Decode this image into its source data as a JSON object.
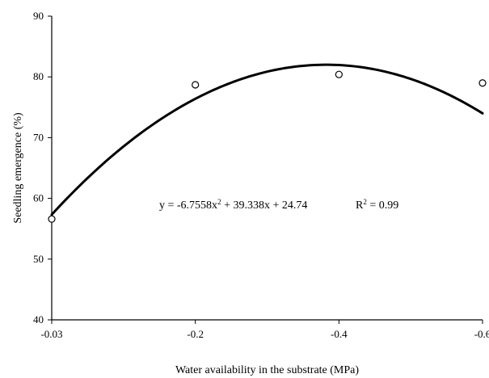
{
  "chart_data": {
    "type": "scatter",
    "xlabel": "Water availability in the substrate (MPa)",
    "ylabel": "Seedling emergence (%)",
    "x_categories": [
      "-0.03",
      "-0.2",
      "-0.4",
      "-0.6"
    ],
    "x": [
      -0.03,
      -0.2,
      -0.4,
      -0.6
    ],
    "series": [
      {
        "values": [
          56.6,
          78.7,
          80.4,
          79.0
        ]
      }
    ],
    "ylim": [
      40,
      90
    ],
    "yticks": [
      "40",
      "50",
      "60",
      "70",
      "80",
      "90"
    ],
    "fit": {
      "type": "quadratic",
      "equation": "y = -6.7558x² + 39.338x + 24.74",
      "r2_text": "R² = 0.99",
      "coefficients": [
        -6.7558,
        39.338,
        24.74
      ]
    },
    "grid": false,
    "legend": "none",
    "colors": {
      "line": "#000000",
      "marker_fill": "#ffffff",
      "marker_stroke": "#000000",
      "background": "#ffffff"
    }
  }
}
